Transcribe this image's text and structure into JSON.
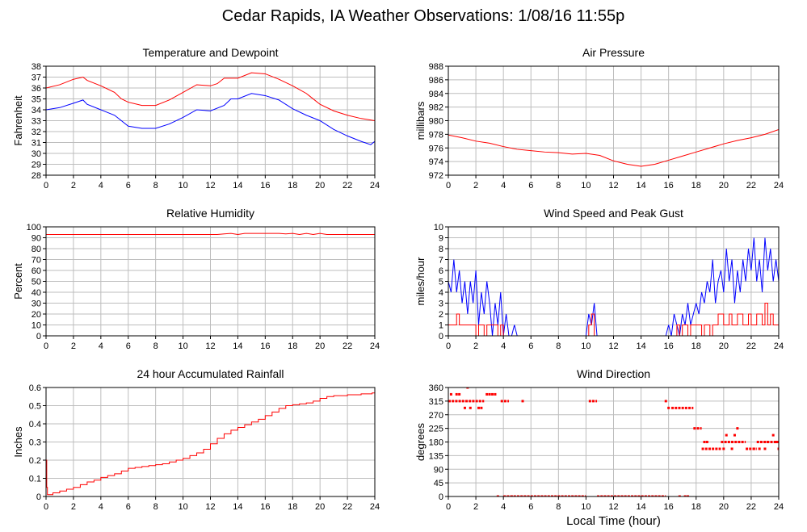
{
  "page": {
    "title": "Cedar Rapids, IA Weather Observations: 1/08/16 11:55p"
  },
  "colors": {
    "temperature": "#ff0000",
    "dewpoint": "#0000ff",
    "grid": "#bdbdbd",
    "frame": "#000000"
  },
  "chart_data": [
    {
      "id": "temp",
      "type": "line",
      "title": "Temperature and Dewpoint",
      "ylabel": "Fahrenheit",
      "xlabel": "",
      "xlim": [
        0,
        24
      ],
      "ylim": [
        28,
        38
      ],
      "xticks": [
        0,
        2,
        4,
        6,
        8,
        10,
        12,
        14,
        16,
        18,
        20,
        22,
        24
      ],
      "yticks": [
        28,
        29,
        30,
        31,
        32,
        33,
        34,
        35,
        36,
        37,
        38
      ],
      "grid": true,
      "series": [
        {
          "color": "#ff0000",
          "step": false,
          "x": [
            0,
            1,
            2,
            2.7,
            3,
            4,
            5,
            5.5,
            6,
            7,
            8,
            9,
            10,
            11,
            12,
            12.5,
            13,
            14,
            15,
            16,
            17,
            18,
            19,
            20,
            21,
            22,
            23,
            24
          ],
          "y": [
            36,
            36.3,
            36.8,
            37,
            36.7,
            36.2,
            35.6,
            35,
            34.7,
            34.4,
            34.4,
            34.9,
            35.6,
            36.3,
            36.2,
            36.4,
            36.9,
            36.9,
            37.4,
            37.3,
            36.8,
            36.2,
            35.5,
            34.5,
            33.9,
            33.5,
            33.2,
            33
          ]
        },
        {
          "color": "#0000ff",
          "step": false,
          "x": [
            0,
            1,
            2,
            2.7,
            3,
            4,
            5,
            5.5,
            6,
            7,
            8,
            9,
            10,
            11,
            12,
            13,
            13.5,
            14,
            15,
            16,
            17,
            18,
            19,
            20,
            21,
            22,
            23,
            23.7,
            24
          ],
          "y": [
            34,
            34.2,
            34.6,
            34.9,
            34.5,
            34,
            33.5,
            33,
            32.5,
            32.3,
            32.3,
            32.7,
            33.3,
            34,
            33.9,
            34.4,
            35,
            35,
            35.5,
            35.3,
            34.9,
            34.1,
            33.5,
            33,
            32.2,
            31.6,
            31.1,
            30.8,
            31.1
          ]
        }
      ]
    },
    {
      "id": "pressure",
      "type": "line",
      "title": "Air Pressure",
      "ylabel": "millibars",
      "xlabel": "",
      "xlim": [
        0,
        24
      ],
      "ylim": [
        972,
        988
      ],
      "xticks": [
        0,
        2,
        4,
        6,
        8,
        10,
        12,
        14,
        16,
        18,
        20,
        22,
        24
      ],
      "yticks": [
        972,
        974,
        976,
        978,
        980,
        982,
        984,
        986,
        988
      ],
      "grid": true,
      "series": [
        {
          "color": "#ff0000",
          "step": false,
          "x": [
            0,
            1,
            2,
            3,
            4,
            5,
            6,
            7,
            8,
            9,
            10,
            11,
            12,
            13,
            14,
            15,
            16,
            17,
            18,
            19,
            20,
            21,
            22,
            23,
            24
          ],
          "y": [
            977.9,
            977.5,
            977.0,
            976.7,
            976.2,
            975.8,
            975.6,
            975.4,
            975.3,
            975.1,
            975.2,
            974.9,
            974.1,
            973.6,
            973.3,
            973.6,
            974.2,
            974.8,
            975.4,
            976.0,
            976.6,
            977.1,
            977.5,
            978.0,
            978.7
          ]
        }
      ]
    },
    {
      "id": "humidity",
      "type": "line",
      "title": "Relative Humidity",
      "ylabel": "Percent",
      "xlabel": "",
      "xlim": [
        0,
        24
      ],
      "ylim": [
        0,
        100
      ],
      "xticks": [
        0,
        2,
        4,
        6,
        8,
        10,
        12,
        14,
        16,
        18,
        20,
        22,
        24
      ],
      "yticks": [
        0,
        10,
        20,
        30,
        40,
        50,
        60,
        70,
        80,
        90,
        100
      ],
      "grid": true,
      "series": [
        {
          "color": "#ff0000",
          "step": false,
          "x": [
            0,
            12.5,
            13,
            13.5,
            14,
            14.5,
            15,
            15.5,
            16,
            17,
            17.5,
            18,
            18.5,
            19,
            19.5,
            20,
            20.5,
            21,
            22,
            23,
            24
          ],
          "y": [
            93,
            93,
            93.5,
            94,
            93,
            94,
            94,
            94,
            94,
            94,
            93.5,
            94,
            93,
            94,
            93,
            94,
            93,
            93,
            93,
            93,
            93
          ]
        }
      ]
    },
    {
      "id": "wind",
      "type": "line",
      "title": "Wind Speed and Peak Gust",
      "ylabel": "miles/hour",
      "xlabel": "",
      "xlim": [
        0,
        24
      ],
      "ylim": [
        0,
        10
      ],
      "xticks": [
        0,
        2,
        4,
        6,
        8,
        10,
        12,
        14,
        16,
        18,
        20,
        22,
        24
      ],
      "yticks": [
        0,
        1,
        2,
        3,
        4,
        5,
        6,
        7,
        8,
        9,
        10
      ],
      "grid": true,
      "series": [
        {
          "color": "#0000ff",
          "step": false,
          "x": [
            0,
            0.2,
            0.4,
            0.6,
            0.8,
            1.0,
            1.2,
            1.4,
            1.6,
            1.8,
            2.0,
            2.2,
            2.4,
            2.6,
            2.8,
            3.0,
            3.2,
            3.4,
            3.6,
            3.8,
            4.0,
            4.2,
            4.4,
            4.6,
            4.8,
            5.0,
            5.2,
            5.4,
            10.0,
            10.2,
            10.4,
            10.6,
            10.8,
            15.8,
            16.0,
            16.2,
            16.4,
            16.6,
            16.8,
            17.0,
            17.2,
            17.4,
            17.6,
            17.8,
            18.0,
            18.2,
            18.4,
            18.6,
            18.8,
            19.0,
            19.2,
            19.4,
            19.6,
            19.8,
            20.0,
            20.2,
            20.4,
            20.6,
            20.8,
            21.0,
            21.2,
            21.4,
            21.6,
            21.8,
            22.0,
            22.2,
            22.4,
            22.6,
            22.8,
            23.0,
            23.2,
            23.4,
            23.6,
            23.8,
            24.0
          ],
          "y": [
            5,
            4,
            7,
            4,
            6,
            3,
            5,
            2,
            5,
            3,
            6,
            1,
            4,
            2,
            5,
            3,
            0,
            3,
            1,
            4,
            0,
            2,
            0,
            0,
            1,
            0,
            0,
            0,
            0,
            2,
            1,
            3,
            0,
            0,
            1,
            0,
            2,
            1,
            0,
            2,
            1,
            3,
            1,
            2,
            3,
            2,
            4,
            3,
            5,
            4,
            7,
            3,
            5,
            6,
            4,
            8,
            5,
            7,
            3,
            6,
            4,
            7,
            5,
            8,
            6,
            9,
            5,
            7,
            4,
            9,
            6,
            8,
            5,
            7,
            5
          ]
        },
        {
          "color": "#ff0000",
          "step": true,
          "x": [
            0,
            0.6,
            0.8,
            1.8,
            2.0,
            2.2,
            2.6,
            2.8,
            3.6,
            3.8,
            4.0,
            4.2,
            10.2,
            10.4,
            10.6,
            16.6,
            16.8,
            17.0,
            17.4,
            17.6,
            18.0,
            18.4,
            18.6,
            19.0,
            19.2,
            19.6,
            20.0,
            20.4,
            20.6,
            21.0,
            21.4,
            21.8,
            22.0,
            22.4,
            22.8,
            23.0,
            23.2,
            23.4,
            23.6,
            24.0
          ],
          "y": [
            1,
            2,
            1,
            1,
            0,
            1,
            0,
            1,
            0,
            1,
            0,
            0,
            1,
            2,
            0,
            1,
            0,
            1,
            0,
            1,
            1,
            0,
            1,
            0,
            1,
            2,
            1,
            2,
            1,
            2,
            1,
            2,
            1,
            2,
            1,
            3,
            1,
            2,
            1,
            1
          ]
        }
      ]
    },
    {
      "id": "rain",
      "type": "line",
      "title": "24 hour Accumulated Rainfall",
      "ylabel": "Inches",
      "xlabel": "",
      "xlim": [
        0,
        24
      ],
      "ylim": [
        0,
        0.6
      ],
      "xticks": [
        0,
        2,
        4,
        6,
        8,
        10,
        12,
        14,
        16,
        18,
        20,
        22,
        24
      ],
      "yticks": [
        0,
        0.1,
        0.2,
        0.3,
        0.4,
        0.5,
        0.6
      ],
      "grid": true,
      "series": [
        {
          "color": "#ff0000",
          "step": true,
          "x": [
            0,
            0.05,
            0.1,
            0.5,
            1,
            1.5,
            2,
            2.5,
            3,
            3.5,
            4,
            4.5,
            5,
            5.5,
            6,
            6.5,
            7,
            7.5,
            8,
            8.5,
            9,
            9.5,
            10,
            10.5,
            11,
            11.5,
            12,
            12.5,
            13,
            13.5,
            14,
            14.5,
            15,
            15.5,
            16,
            16.5,
            17,
            17.5,
            18,
            18.5,
            19,
            19.5,
            20,
            20.5,
            21,
            22,
            23,
            23.8,
            24
          ],
          "y": [
            0.2,
            0.05,
            0.01,
            0.02,
            0.03,
            0.04,
            0.05,
            0.065,
            0.08,
            0.09,
            0.105,
            0.115,
            0.125,
            0.14,
            0.155,
            0.16,
            0.165,
            0.17,
            0.175,
            0.18,
            0.19,
            0.2,
            0.21,
            0.225,
            0.24,
            0.26,
            0.29,
            0.32,
            0.345,
            0.365,
            0.38,
            0.395,
            0.41,
            0.425,
            0.445,
            0.465,
            0.485,
            0.5,
            0.505,
            0.51,
            0.515,
            0.525,
            0.54,
            0.55,
            0.555,
            0.56,
            0.565,
            0.57,
            0.57
          ]
        }
      ]
    },
    {
      "id": "direction",
      "type": "scatter",
      "title": "Wind Direction",
      "ylabel": "degrees",
      "xlabel": "Local Time (hour)",
      "xlim": [
        0,
        24
      ],
      "ylim": [
        0,
        360
      ],
      "xticks": [
        0,
        2,
        4,
        6,
        8,
        10,
        12,
        14,
        16,
        18,
        20,
        22,
        24
      ],
      "yticks": [
        0,
        45,
        90,
        135,
        180,
        225,
        270,
        315,
        360
      ],
      "grid": true,
      "segments": [
        {
          "x0": 0,
          "x1": 2.6,
          "y": 315
        },
        {
          "x0": 3.8,
          "x1": 4.4,
          "y": 315
        },
        {
          "x0": 10.2,
          "x1": 10.8,
          "y": 315
        },
        {
          "x0": 4.0,
          "x1": 10.0,
          "y": 0
        },
        {
          "x0": 10.8,
          "x1": 15.8,
          "y": 0
        },
        {
          "x0": 16.2,
          "x1": 17.8,
          "y": 292.5
        },
        {
          "x0": 17.8,
          "x1": 18.4,
          "y": 225
        },
        {
          "x0": 18.4,
          "x1": 19.8,
          "y": 157.5
        },
        {
          "x0": 19.8,
          "x1": 21.6,
          "y": 180
        },
        {
          "x0": 21.6,
          "x1": 22.4,
          "y": 157.5
        },
        {
          "x0": 22.4,
          "x1": 24,
          "y": 180
        }
      ],
      "points": {
        "x": [
          0.2,
          0.6,
          0.8,
          1.2,
          1.4,
          1.6,
          2.2,
          2.4,
          2.8,
          3.0,
          3.2,
          3.4,
          3.6,
          4.6,
          5.4,
          15.8,
          16.0,
          17.2,
          18.6,
          18.8,
          20.0,
          20.2,
          20.6,
          20.8,
          21.0,
          22.2,
          22.6,
          23.0,
          23.2,
          23.6,
          23.8,
          24.0,
          16.8,
          17.4
        ],
        "y": [
          337.5,
          337.5,
          337.5,
          292.5,
          360,
          292.5,
          292.5,
          292.5,
          337.5,
          337.5,
          337.5,
          337.5,
          0,
          0,
          315,
          315,
          292.5,
          0,
          180,
          180,
          157.5,
          202.5,
          157.5,
          202.5,
          225,
          157.5,
          157.5,
          157.5,
          180,
          202.5,
          180,
          157.5,
          0,
          0
        ]
      }
    }
  ]
}
